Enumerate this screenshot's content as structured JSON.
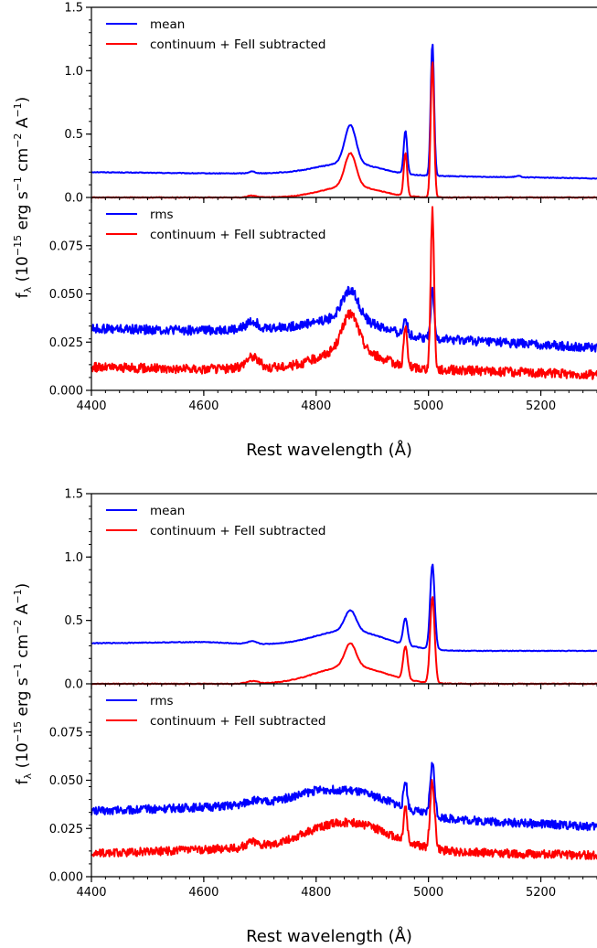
{
  "figure": {
    "xlabel": "Rest wavelength (Å)",
    "ylabel": "fλ (10⁻¹⁵ erg s⁻¹ cm⁻² A⁻¹)",
    "ylabel_parts": {
      "f": "f",
      "sub": "λ",
      "open": " (10",
      "e1": "−15",
      "mid1": " erg s",
      "e2": "−1",
      "mid2": " cm",
      "e3": "−2",
      "mid3": " A",
      "e4": "−1",
      "close": ")"
    },
    "colors": {
      "blue": "#0000ff",
      "red": "#ff0000"
    }
  },
  "chart_data": [
    {
      "type": "line",
      "panel": "upper figure, top panel",
      "xlim": [
        4400,
        5300
      ],
      "ylim": [
        0,
        1.5
      ],
      "xticks": [
        4400,
        4600,
        4800,
        5000,
        5200
      ],
      "yticks": [
        0.0,
        0.5,
        1.0,
        1.5
      ],
      "ytick_labels": [
        "0.0",
        "0.5",
        "1.0",
        "1.5"
      ],
      "legend": "top-left",
      "series": [
        {
          "name": "mean",
          "color": "#0000ff",
          "continuum": [
            [
              4400,
              0.2
            ],
            [
              4600,
              0.19
            ],
            [
              4700,
              0.19
            ],
            [
              4800,
              0.2
            ],
            [
              5000,
              0.17
            ],
            [
              5300,
              0.15
            ]
          ],
          "lines": [
            [
              4861,
              0.3,
              10
            ],
            [
              4861,
              0.08,
              50
            ],
            [
              4959,
              0.34,
              3
            ],
            [
              5007,
              1.05,
              3
            ],
            [
              4686,
              0.015,
              6
            ],
            [
              5160,
              0.01,
              5
            ]
          ]
        },
        {
          "name": "continuum + FeII subtracted",
          "color": "#ff0000",
          "continuum": [
            [
              4400,
              0.0
            ],
            [
              5300,
              0.0
            ]
          ],
          "lines": [
            [
              4861,
              0.26,
              10
            ],
            [
              4861,
              0.09,
              50
            ],
            [
              4959,
              0.34,
              3
            ],
            [
              5007,
              1.08,
              3
            ],
            [
              4686,
              0.015,
              8
            ]
          ]
        }
      ]
    },
    {
      "type": "line",
      "panel": "upper figure, bottom panel",
      "xlim": [
        4400,
        5300
      ],
      "ylim": [
        0,
        0.1
      ],
      "xticks": [
        4400,
        4600,
        4800,
        5000,
        5200
      ],
      "yticks": [
        0.0,
        0.025,
        0.05,
        0.075
      ],
      "ytick_labels": [
        "0.000",
        "0.025",
        "0.050",
        "0.075"
      ],
      "legend": "top-left",
      "series": [
        {
          "name": "rms",
          "color": "#0000ff",
          "noise": 0.0024,
          "continuum": [
            [
              4400,
              0.032
            ],
            [
              4600,
              0.031
            ],
            [
              4800,
              0.033
            ],
            [
              5000,
              0.027
            ],
            [
              5300,
              0.022
            ]
          ],
          "lines": [
            [
              4861,
              0.015,
              14
            ],
            [
              4861,
              0.006,
              50
            ],
            [
              4959,
              0.009,
              3
            ],
            [
              5007,
              0.024,
              3
            ],
            [
              4686,
              0.004,
              10
            ]
          ]
        },
        {
          "name": "continuum + FeII subtracted",
          "color": "#ff0000",
          "noise": 0.0024,
          "continuum": [
            [
              4400,
              0.012
            ],
            [
              4600,
              0.011
            ],
            [
              4800,
              0.012
            ],
            [
              5000,
              0.011
            ],
            [
              5300,
              0.008
            ]
          ],
          "lines": [
            [
              4861,
              0.018,
              14
            ],
            [
              4861,
              0.01,
              50
            ],
            [
              4959,
              0.02,
              3
            ],
            [
              5007,
              0.082,
              3
            ],
            [
              4686,
              0.006,
              12
            ]
          ]
        }
      ]
    },
    {
      "type": "line",
      "panel": "lower figure, top panel",
      "xlim": [
        4400,
        5300
      ],
      "ylim": [
        0,
        1.5
      ],
      "xticks": [
        4400,
        4600,
        4800,
        5000,
        5200
      ],
      "yticks": [
        0.0,
        0.5,
        1.0,
        1.5
      ],
      "ytick_labels": [
        "0.0",
        "0.5",
        "1.0",
        "1.5"
      ],
      "legend": "top-left",
      "series": [
        {
          "name": "mean",
          "color": "#0000ff",
          "continuum": [
            [
              4400,
              0.32
            ],
            [
              4600,
              0.33
            ],
            [
              4700,
              0.31
            ],
            [
              4800,
              0.3
            ],
            [
              5050,
              0.26
            ],
            [
              5300,
              0.26
            ]
          ],
          "lines": [
            [
              4861,
              0.16,
              10
            ],
            [
              4861,
              0.13,
              60
            ],
            [
              4959,
              0.21,
              4
            ],
            [
              5007,
              0.67,
              4
            ],
            [
              4686,
              0.02,
              8
            ]
          ]
        },
        {
          "name": "continuum + FeII subtracted",
          "color": "#ff0000",
          "continuum": [
            [
              4400,
              0.0
            ],
            [
              5300,
              0.0
            ]
          ],
          "lines": [
            [
              4861,
              0.18,
              10
            ],
            [
              4861,
              0.14,
              60
            ],
            [
              4959,
              0.26,
              4
            ],
            [
              5007,
              0.68,
              4
            ],
            [
              4686,
              0.02,
              10
            ]
          ]
        }
      ]
    },
    {
      "type": "line",
      "panel": "lower figure, bottom panel",
      "xlim": [
        4400,
        5300
      ],
      "ylim": [
        0,
        0.1
      ],
      "xticks": [
        4400,
        4600,
        4800,
        5000,
        5200
      ],
      "yticks": [
        0.0,
        0.025,
        0.05,
        0.075
      ],
      "ytick_labels": [
        "0.000",
        "0.025",
        "0.050",
        "0.075"
      ],
      "legend": "top-left",
      "series": [
        {
          "name": "rms",
          "color": "#0000ff",
          "noise": 0.0022,
          "continuum": [
            [
              4400,
              0.034
            ],
            [
              4600,
              0.036
            ],
            [
              4800,
              0.038
            ],
            [
              5000,
              0.03
            ],
            [
              5300,
              0.026
            ]
          ],
          "lines": [
            [
              4861,
              0.009,
              80
            ],
            [
              4959,
              0.014,
              3
            ],
            [
              5007,
              0.027,
              4
            ],
            [
              4686,
              0.002,
              10
            ]
          ]
        },
        {
          "name": "continuum + FeII subtracted",
          "color": "#ff0000",
          "noise": 0.0022,
          "continuum": [
            [
              4400,
              0.012
            ],
            [
              4600,
              0.014
            ],
            [
              4800,
              0.016
            ],
            [
              5000,
              0.013
            ],
            [
              5300,
              0.011
            ]
          ],
          "lines": [
            [
              4861,
              0.013,
              70
            ],
            [
              4959,
              0.018,
              3
            ],
            [
              5007,
              0.035,
              4
            ],
            [
              4686,
              0.003,
              10
            ]
          ]
        }
      ]
    }
  ]
}
